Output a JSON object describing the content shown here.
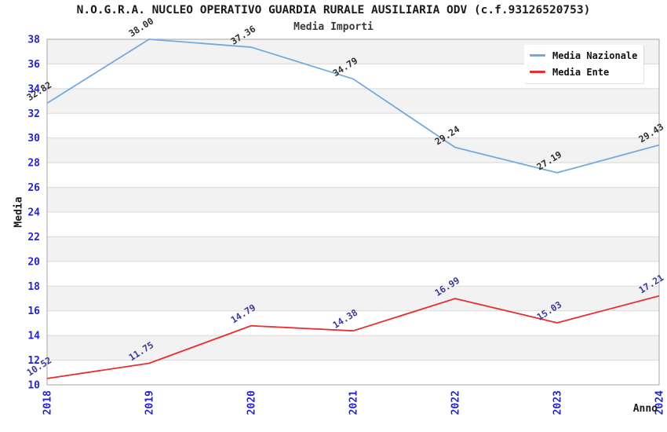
{
  "chart_data": {
    "type": "line",
    "title": "N.O.G.R.A. NUCLEO OPERATIVO GUARDIA RURALE AUSILIARIA ODV (c.f.93126520753)",
    "subtitle": "Media Importi",
    "xlabel": "Anno",
    "ylabel": "Media",
    "x": [
      "2018",
      "2019",
      "2020",
      "2021",
      "2022",
      "2023",
      "2024"
    ],
    "ylim": [
      10,
      38
    ],
    "ytick_step": 2,
    "grid": "alternating-horizontal-bands",
    "legend_position": "top-right",
    "series": [
      {
        "name": "Media Nazionale",
        "color": "#74aadd",
        "label_color": "#2f2f2f",
        "values": [
          32.82,
          38.0,
          37.36,
          34.79,
          29.24,
          27.19,
          29.43
        ]
      },
      {
        "name": "Media Ente",
        "color": "#e82e2e",
        "label_color": "#3a3a99",
        "values": [
          10.52,
          11.75,
          14.79,
          14.38,
          16.99,
          15.03,
          17.21
        ]
      }
    ],
    "style": {
      "tick_label_color": "#2424cc",
      "band_fill": "#f2f2f2",
      "band_line": "#d9d9d9",
      "frame_color": "#a6a6a6",
      "background": "#ffffff",
      "title_color": "#1a1a1a",
      "subtitle_color": "#3a3a3a",
      "axis_title_color": "#1a1a1a"
    }
  }
}
